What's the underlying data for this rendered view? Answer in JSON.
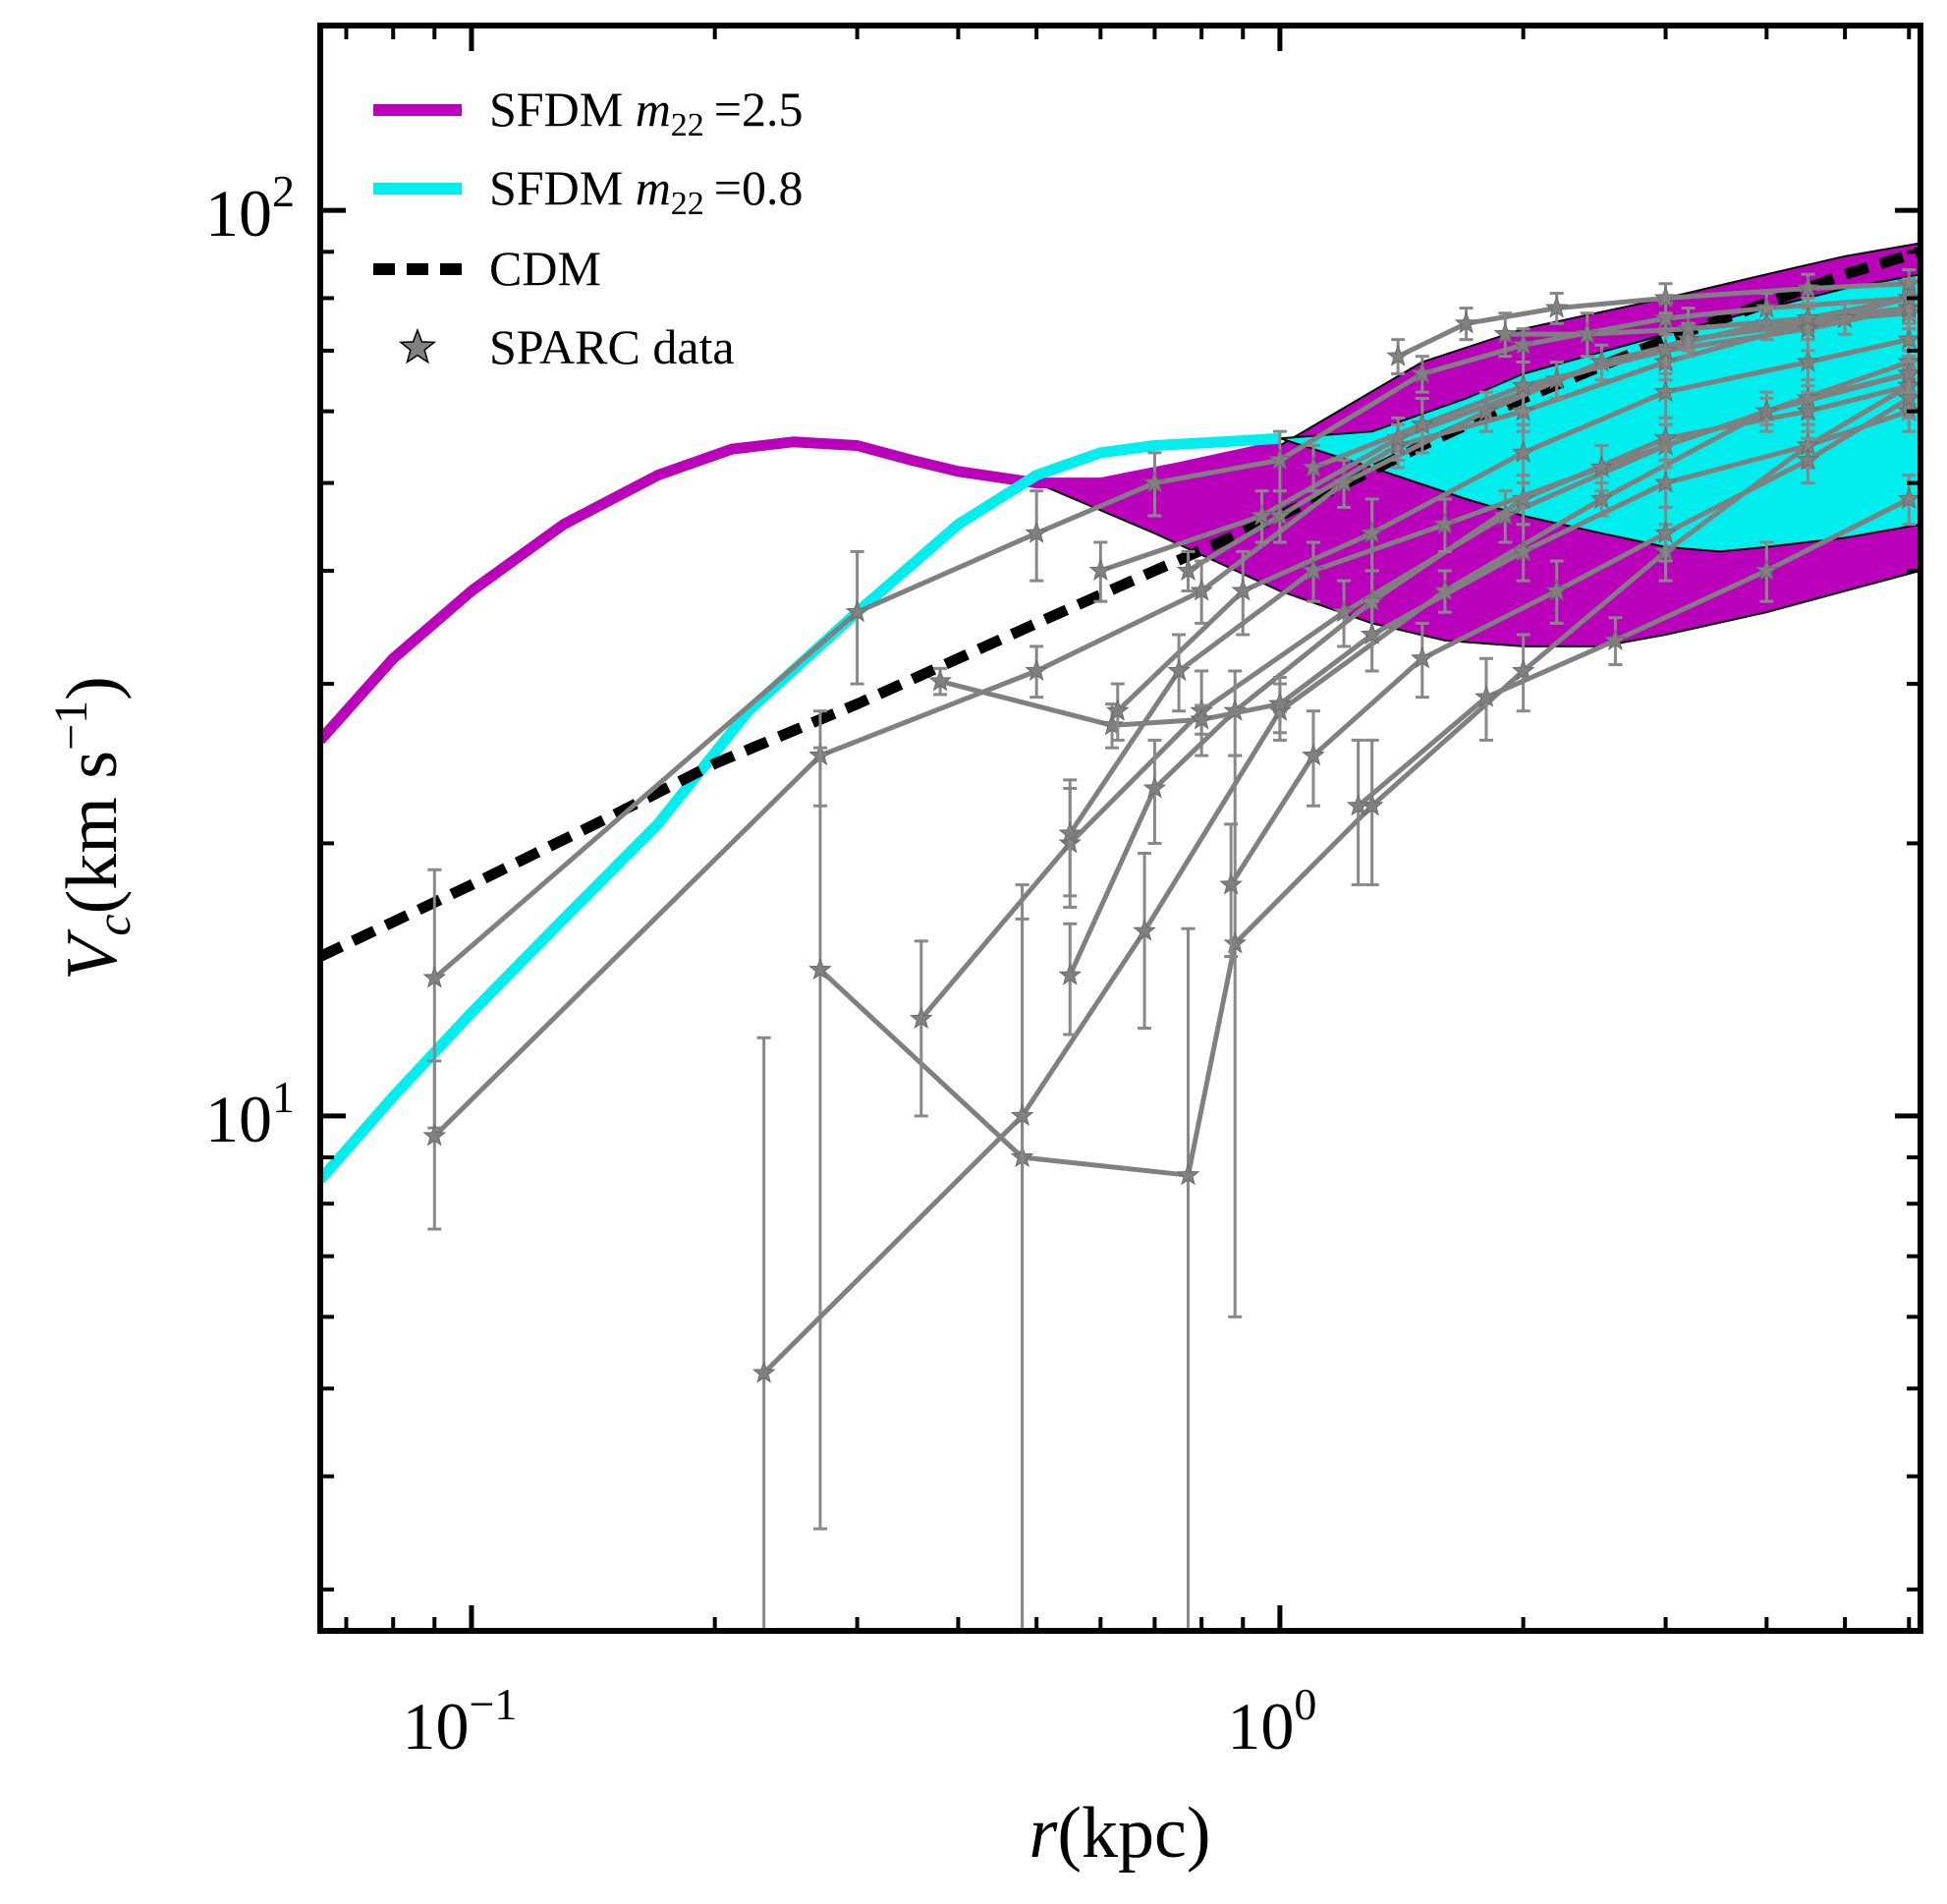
{
  "chart_data": {
    "type": "line",
    "title": "",
    "xlabel": "r(kpc)",
    "ylabel": "V_c(km s^-1)",
    "xscale": "log",
    "yscale": "log",
    "xlim": [
      0.065,
      6.2
    ],
    "ylim": [
      2.7,
      160
    ],
    "x_ticks": [
      {
        "value": 0.1,
        "label": "10^-1"
      },
      {
        "value": 1,
        "label": "10^0"
      }
    ],
    "y_ticks": [
      {
        "value": 10,
        "label": "10^1"
      },
      {
        "value": 100,
        "label": "10^2"
      }
    ],
    "legend_position": "top-left",
    "colors": {
      "sfdm_25": "#bb00bb",
      "sfdm_08": "#00eeee",
      "cdm": "#000000",
      "sparc": "#808080"
    },
    "legend": [
      {
        "key": "sfdm_25",
        "name": "SFDM",
        "param": "m",
        "sub": "22",
        "value": "=2.5",
        "style": "solid"
      },
      {
        "key": "sfdm_08",
        "name": "SFDM",
        "param": "m",
        "sub": "22",
        "value": "=0.8",
        "style": "solid"
      },
      {
        "key": "cdm",
        "name": "CDM",
        "style": "dashed"
      },
      {
        "key": "sparc",
        "name": "SPARC data",
        "style": "star"
      }
    ],
    "series": {
      "sfdm_25_line": [
        [
          0.065,
          26
        ],
        [
          0.08,
          32
        ],
        [
          0.1,
          38
        ],
        [
          0.13,
          45
        ],
        [
          0.17,
          51
        ],
        [
          0.21,
          54.5
        ],
        [
          0.25,
          55.5
        ],
        [
          0.3,
          55
        ],
        [
          0.35,
          53
        ],
        [
          0.4,
          51.5
        ],
        [
          0.5,
          50
        ],
        [
          0.6,
          50
        ],
        [
          0.75,
          52
        ],
        [
          1.0,
          55
        ]
      ],
      "sfdm_25_band": {
        "upper": [
          [
            0.5,
            50
          ],
          [
            0.6,
            50
          ],
          [
            0.75,
            52
          ],
          [
            1.0,
            55
          ],
          [
            1.5,
            68
          ],
          [
            2,
            74
          ],
          [
            3,
            80
          ],
          [
            4,
            85
          ],
          [
            5,
            89
          ],
          [
            6.2,
            92
          ]
        ],
        "lower": [
          [
            0.5,
            50
          ],
          [
            0.7,
            44
          ],
          [
            1.0,
            38
          ],
          [
            1.3,
            35
          ],
          [
            1.6,
            33.5
          ],
          [
            2,
            33
          ],
          [
            2.5,
            33
          ],
          [
            3,
            34
          ],
          [
            4,
            36
          ],
          [
            5,
            38
          ],
          [
            6.2,
            40
          ]
        ]
      },
      "sfdm_08_line": [
        [
          0.065,
          8.5
        ],
        [
          0.08,
          10.5
        ],
        [
          0.1,
          13
        ],
        [
          0.13,
          16.5
        ],
        [
          0.17,
          21
        ],
        [
          0.22,
          28
        ],
        [
          0.3,
          36
        ],
        [
          0.4,
          45
        ],
        [
          0.5,
          51
        ],
        [
          0.6,
          54
        ],
        [
          0.7,
          55
        ],
        [
          0.85,
          55.5
        ],
        [
          1.0,
          56
        ]
      ],
      "sfdm_08_band": {
        "upper": [
          [
            1.0,
            56
          ],
          [
            1.3,
            57
          ],
          [
            1.7,
            62
          ],
          [
            2,
            66
          ],
          [
            3,
            73
          ],
          [
            4,
            78
          ],
          [
            5,
            82
          ],
          [
            6.2,
            85
          ]
        ],
        "lower": [
          [
            1.0,
            56
          ],
          [
            1.3,
            52
          ],
          [
            1.7,
            48
          ],
          [
            2,
            46
          ],
          [
            2.5,
            44
          ],
          [
            3,
            42.5
          ],
          [
            3.5,
            42
          ],
          [
            4,
            42.5
          ],
          [
            5,
            43.5
          ],
          [
            6.2,
            45
          ]
        ]
      },
      "cdm_line": [
        [
          0.065,
          15
        ],
        [
          0.1,
          18
        ],
        [
          0.15,
          21.5
        ],
        [
          0.2,
          24.5
        ],
        [
          0.3,
          28.5
        ],
        [
          0.4,
          32
        ],
        [
          0.5,
          35
        ],
        [
          0.7,
          40
        ],
        [
          1.0,
          46
        ],
        [
          1.5,
          55
        ],
        [
          2,
          62
        ],
        [
          3,
          72
        ],
        [
          4,
          79
        ],
        [
          5,
          85
        ],
        [
          6.2,
          90
        ]
      ],
      "sparc_curves": [
        {
          "points": [
            [
              0.09,
              14.2,
              4.5
            ],
            [
              0.3,
              36,
              6
            ],
            [
              0.5,
              44,
              5
            ],
            [
              0.7,
              50,
              4
            ],
            [
              1.0,
              53,
              4
            ],
            [
              1.5,
              66,
              3
            ],
            [
              2,
              71,
              3
            ],
            [
              3,
              76,
              3
            ],
            [
              4,
              78,
              3
            ],
            [
              6,
              80,
              3
            ]
          ]
        },
        {
          "points": [
            [
              0.09,
              9.5,
              2
            ],
            [
              0.27,
              25,
              3
            ],
            [
              0.5,
              31,
              2
            ],
            [
              0.8,
              38,
              3
            ],
            [
              1.2,
              50,
              3
            ],
            [
              1.8,
              60,
              3
            ],
            [
              2.5,
              68,
              3
            ],
            [
              4,
              75,
              3
            ],
            [
              6,
              78,
              3
            ]
          ]
        },
        {
          "points": [
            [
              0.27,
              14.5,
              11
            ],
            [
              0.48,
              9,
              7.5
            ],
            [
              0.77,
              8.6,
              7.5
            ],
            [
              0.88,
              15.5,
              9.5
            ],
            [
              1.3,
              22,
              4
            ],
            [
              2,
              31,
              3
            ],
            [
              3,
              42,
              3
            ],
            [
              4.5,
              55,
              3
            ],
            [
              6,
              64,
              3
            ]
          ]
        },
        {
          "points": [
            [
              0.23,
              5.2,
              7
            ],
            [
              0.48,
              10,
              8
            ],
            [
              0.68,
              16,
              3.5
            ],
            [
              1.0,
              28,
              2
            ],
            [
              1.6,
              38,
              2
            ],
            [
              2.5,
              48,
              2
            ],
            [
              4,
              60,
              2
            ],
            [
              6,
              68,
              2
            ]
          ]
        },
        {
          "points": [
            [
              0.36,
              12.8,
              2.8
            ],
            [
              0.55,
              20,
              3
            ],
            [
              0.8,
              28,
              3
            ],
            [
              1.2,
              36,
              3
            ],
            [
              1.9,
              46,
              3
            ],
            [
              3,
              55,
              3
            ],
            [
              4.5,
              62,
              3
            ],
            [
              6,
              66,
              3
            ]
          ]
        },
        {
          "points": [
            [
              0.55,
              14.3,
              2
            ],
            [
              0.7,
              23,
              3
            ],
            [
              0.88,
              28,
              3
            ],
            [
              1.3,
              37,
              3
            ],
            [
              2,
              48,
              3
            ],
            [
              3,
              56,
              3
            ],
            [
              4.5,
              60,
              3
            ],
            [
              6,
              64,
              3
            ]
          ]
        },
        {
          "points": [
            [
              0.38,
              30.2,
              1
            ],
            [
              0.62,
              27,
              1.5
            ],
            [
              0.8,
              27.4,
              1
            ],
            [
              1.0,
              28.5,
              2
            ],
            [
              1.3,
              34,
              3
            ],
            [
              2,
              42,
              3
            ],
            [
              3,
              50,
              3
            ],
            [
              4.5,
              55,
              3
            ],
            [
              6,
              60,
              3
            ]
          ]
        },
        {
          "points": [
            [
              0.63,
              28,
              2
            ],
            [
              0.9,
              38,
              4
            ],
            [
              1.3,
              44,
              4
            ],
            [
              2,
              54,
              4
            ],
            [
              3,
              63,
              4
            ],
            [
              4.5,
              68,
              4
            ],
            [
              6,
              72,
              4
            ]
          ]
        },
        {
          "points": [
            [
              0.87,
              18,
              3
            ],
            [
              1.1,
              25,
              3
            ],
            [
              1.5,
              32,
              3
            ],
            [
              2.2,
              38,
              3
            ],
            [
              3,
              44,
              3
            ],
            [
              4.5,
              53,
              3
            ],
            [
              6,
              62,
              3
            ]
          ]
        },
        {
          "points": [
            [
              0.55,
              20.5,
              3
            ],
            [
              0.75,
              31,
              3
            ],
            [
              1.1,
              40,
              3
            ],
            [
              1.6,
              45,
              3
            ],
            [
              2.5,
              52,
              3
            ],
            [
              4,
              60,
              3
            ],
            [
              6,
              66,
              3
            ]
          ]
        },
        {
          "points": [
            [
              0.77,
              40,
              2
            ],
            [
              1.0,
              46,
              3
            ],
            [
              1.4,
              55,
              3
            ],
            [
              2,
              60,
              3
            ],
            [
              3,
              68,
              3
            ],
            [
              4.5,
              75,
              3
            ],
            [
              6,
              80,
              3
            ]
          ]
        },
        {
          "points": [
            [
              1.25,
              22,
              4
            ],
            [
              1.8,
              29,
              3
            ],
            [
              2.6,
              33.5,
              2
            ],
            [
              4,
              40,
              3
            ],
            [
              6,
              48,
              3
            ]
          ]
        },
        {
          "points": [
            [
              0.6,
              40,
              3
            ],
            [
              0.95,
              46,
              3
            ],
            [
              1.4,
              56,
              3
            ],
            [
              2.2,
              65,
              3
            ],
            [
              3.2,
              72,
              3
            ],
            [
              5,
              76,
              3
            ],
            [
              6,
              77,
              3
            ]
          ]
        },
        {
          "points": [
            [
              1.1,
              52,
              3
            ],
            [
              1.5,
              58,
              4
            ],
            [
              2,
              64,
              4
            ],
            [
              3,
              70,
              4
            ],
            [
              4.5,
              74,
              4
            ],
            [
              6,
              78,
              4
            ]
          ]
        },
        {
          "points": [
            [
              1.4,
              69,
              3
            ],
            [
              1.7,
              75,
              3
            ],
            [
              2.2,
              78,
              3
            ],
            [
              3,
              80,
              3
            ],
            [
              4.5,
              82,
              3
            ],
            [
              6,
              83,
              3
            ]
          ]
        },
        {
          "points": [
            [
              1.9,
              73,
              4
            ],
            [
              2.4,
              73,
              4
            ],
            [
              3.2,
              74,
              4
            ],
            [
              4.5,
              76,
              4
            ],
            [
              6,
              80,
              4
            ]
          ]
        }
      ]
    }
  }
}
